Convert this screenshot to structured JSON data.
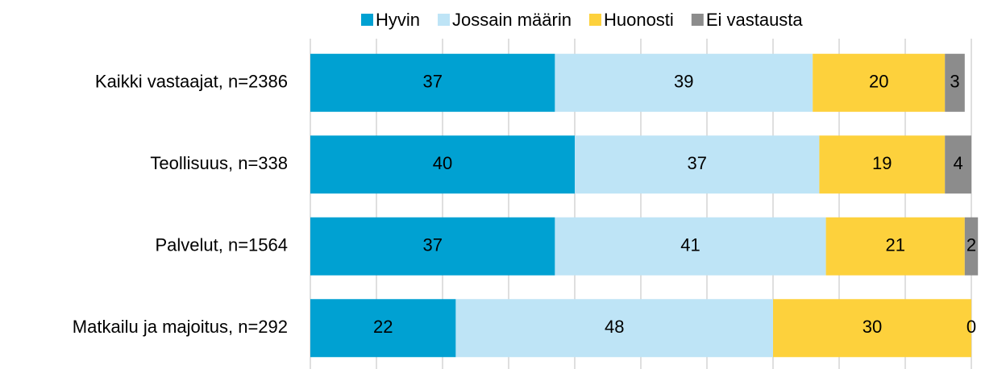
{
  "chart_data": {
    "type": "bar",
    "orientation": "horizontal",
    "stacked": true,
    "categories": [
      "Kaikki vastaajat, n=2386",
      "Teollisuus, n=338",
      "Palvelut, n=1564",
      "Matkailu ja majoitus, n=292"
    ],
    "series": [
      {
        "name": "Hyvin",
        "color": "#00a1d2",
        "values": [
          37,
          40,
          37,
          22
        ]
      },
      {
        "name": "Jossain määrin",
        "color": "#bee4f6",
        "values": [
          39,
          37,
          41,
          48
        ]
      },
      {
        "name": "Huonosti",
        "color": "#fdd13c",
        "values": [
          20,
          19,
          21,
          30
        ]
      },
      {
        "name": "Ei vastausta",
        "color": "#8c8c8c",
        "values": [
          3,
          4,
          2,
          0
        ]
      }
    ],
    "xlim": [
      0,
      100
    ],
    "xticks": [
      0,
      10,
      20,
      30,
      40,
      50,
      60,
      70,
      80,
      90,
      100
    ],
    "grid": true,
    "legend": "top"
  }
}
